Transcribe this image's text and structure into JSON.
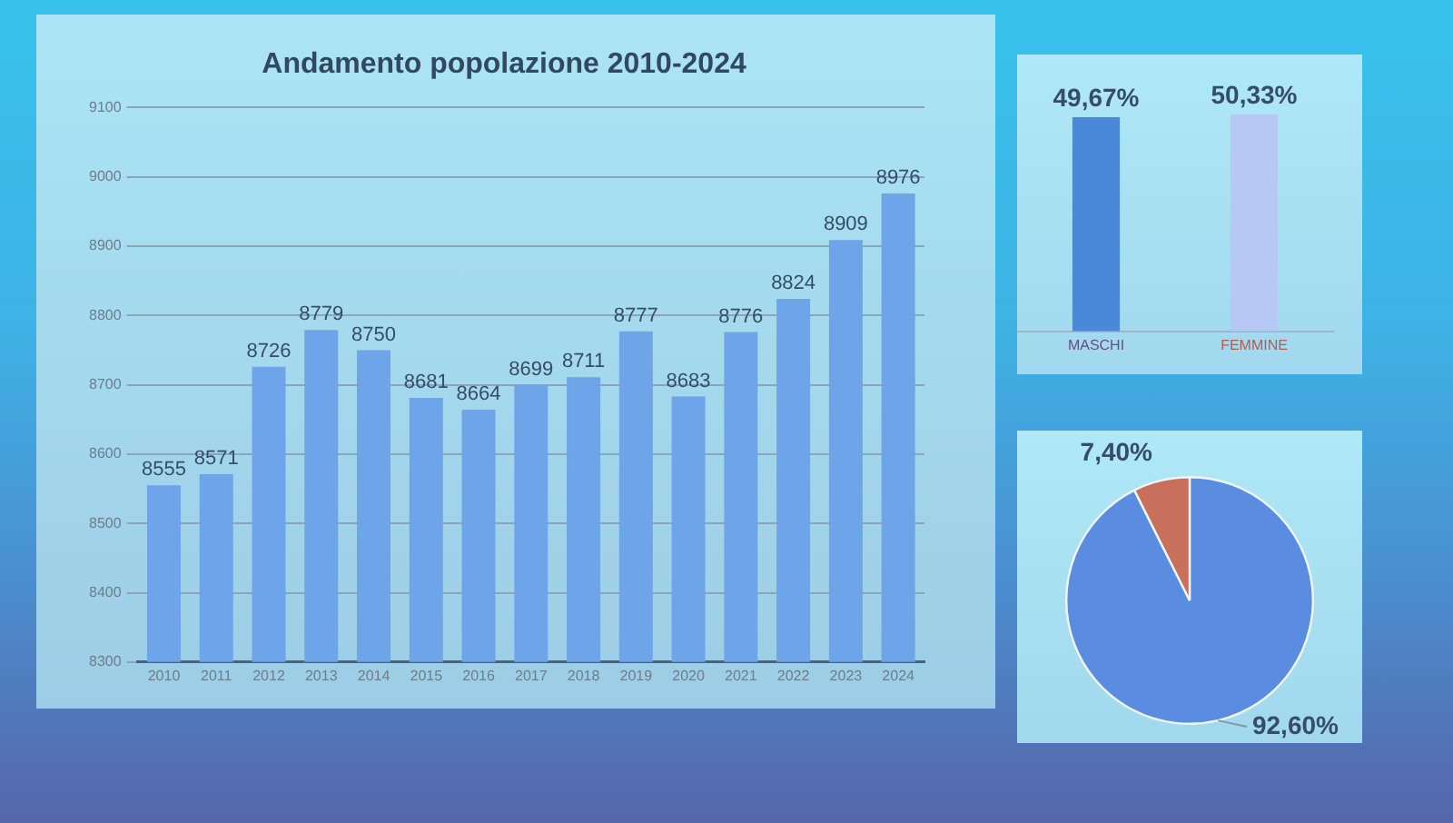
{
  "chart_data": [
    {
      "type": "bar",
      "title": "Andamento popolazione 2010-2024",
      "categories": [
        "2010",
        "2011",
        "2012",
        "2013",
        "2014",
        "2015",
        "2016",
        "2017",
        "2018",
        "2019",
        "2020",
        "2021",
        "2022",
        "2023",
        "2024"
      ],
      "values": [
        8555,
        8571,
        8726,
        8779,
        8750,
        8681,
        8664,
        8699,
        8711,
        8777,
        8683,
        8776,
        8824,
        8909,
        8976
      ],
      "color": "#6ea4e8",
      "ylim": [
        8300,
        9100
      ],
      "yticks": [
        8300,
        8400,
        8500,
        8600,
        8700,
        8800,
        8900,
        9000,
        9100
      ],
      "grid": "y",
      "data_labels": true
    },
    {
      "type": "bar",
      "categories": [
        "MASCHI",
        "FEMMINE"
      ],
      "values": [
        49.67,
        50.33
      ],
      "colors": [
        "#4a88d8",
        "#b6c9f4"
      ],
      "value_labels": [
        "49,67%",
        "50,33%"
      ],
      "tick_labels": "x"
    },
    {
      "type": "pie",
      "categories": [
        null,
        null
      ],
      "values": [
        92.6,
        7.4
      ],
      "colors": [
        "#5a8de0",
        "#c8705c"
      ],
      "value_labels": [
        "92,60%",
        "7,40%"
      ]
    }
  ]
}
